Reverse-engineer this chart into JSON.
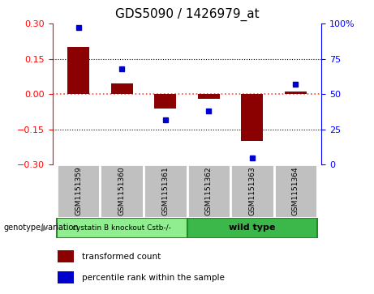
{
  "title": "GDS5090 / 1426979_at",
  "samples": [
    "GSM1151359",
    "GSM1151360",
    "GSM1151361",
    "GSM1151362",
    "GSM1151363",
    "GSM1151364"
  ],
  "transformed_count": [
    0.2,
    0.045,
    -0.06,
    -0.02,
    -0.2,
    0.01
  ],
  "percentile_rank": [
    97,
    68,
    32,
    38,
    5,
    57
  ],
  "ylim_left": [
    -0.3,
    0.3
  ],
  "ylim_right": [
    0,
    100
  ],
  "yticks_left": [
    -0.3,
    -0.15,
    0,
    0.15,
    0.3
  ],
  "yticks_right": [
    0,
    25,
    50,
    75,
    100
  ],
  "ytick_right_labels": [
    "0",
    "25",
    "50",
    "75",
    "100%"
  ],
  "hlines": [
    0.15,
    -0.15
  ],
  "bar_color": "#8B0000",
  "dot_color": "#0000CD",
  "zero_line_color": "#FF4444",
  "group1_label": "cystatin B knockout Cstb-/-",
  "group2_label": "wild type",
  "group1_indices": [
    0,
    1,
    2
  ],
  "group2_indices": [
    3,
    4,
    5
  ],
  "group1_color": "#90EE90",
  "group2_color": "#3CB84A",
  "genotype_label": "genotype/variation",
  "legend_bar_label": "transformed count",
  "legend_dot_label": "percentile rank within the sample",
  "bar_width": 0.5,
  "title_fontsize": 11,
  "tick_fontsize": 8
}
